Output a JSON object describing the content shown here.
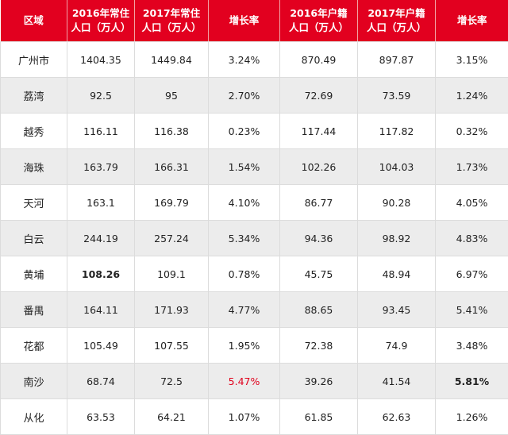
{
  "header": {
    "region": "区域",
    "pop2016_l1": "2016年常住",
    "pop2016_l2": "人口（万人）",
    "pop2017_l1": "2017年常住",
    "pop2017_l2": "人口（万人）",
    "growth": "增长率",
    "reg2016_l1": "2016年户籍",
    "reg2016_l2": "人口（万人）",
    "reg2017_l1": "2017年户籍",
    "reg2017_l2": "人口（万人）",
    "reg_growth": "增长率"
  },
  "rows": [
    {
      "region": "广州市",
      "pop2016": "1404.35",
      "pop2017": "1449.84",
      "growth": "3.24%",
      "reg2016": "870.49",
      "reg2017": "897.87",
      "reg_growth": "3.15%"
    },
    {
      "region": "荔湾",
      "pop2016": "92.5",
      "pop2017": "95",
      "growth": "2.70%",
      "reg2016": "72.69",
      "reg2017": "73.59",
      "reg_growth": "1.24%"
    },
    {
      "region": "越秀",
      "pop2016": "116.11",
      "pop2017": "116.38",
      "growth": "0.23%",
      "reg2016": "117.44",
      "reg2017": "117.82",
      "reg_growth": "0.32%"
    },
    {
      "region": "海珠",
      "pop2016": "163.79",
      "pop2017": "166.31",
      "growth": "1.54%",
      "reg2016": "102.26",
      "reg2017": "104.03",
      "reg_growth": "1.73%"
    },
    {
      "region": "天河",
      "pop2016": "163.1",
      "pop2017": "169.79",
      "growth": "4.10%",
      "reg2016": "86.77",
      "reg2017": "90.28",
      "reg_growth": "4.05%"
    },
    {
      "region": "白云",
      "pop2016": "244.19",
      "pop2017": "257.24",
      "growth": "5.34%",
      "reg2016": "94.36",
      "reg2017": "98.92",
      "reg_growth": "4.83%"
    },
    {
      "region": "黄埔",
      "pop2016": "108.26",
      "pop2017": "109.1",
      "growth": "0.78%",
      "reg2016": "45.75",
      "reg2017": "48.94",
      "reg_growth": "6.97%"
    },
    {
      "region": "番禺",
      "pop2016": "164.11",
      "pop2017": "171.93",
      "growth": "4.77%",
      "reg2016": "88.65",
      "reg2017": "93.45",
      "reg_growth": "5.41%"
    },
    {
      "region": "花都",
      "pop2016": "105.49",
      "pop2017": "107.55",
      "growth": "1.95%",
      "reg2016": "72.38",
      "reg2017": "74.9",
      "reg_growth": "3.48%"
    },
    {
      "region": "南沙",
      "pop2016": "68.74",
      "pop2017": "72.5",
      "growth": "5.47%",
      "reg2016": "39.26",
      "reg2017": "41.54",
      "reg_growth": "5.81%"
    },
    {
      "region": "从化",
      "pop2016": "63.53",
      "pop2017": "64.21",
      "growth": "1.07%",
      "reg2016": "61.85",
      "reg2017": "62.63",
      "reg_growth": "1.26%"
    }
  ],
  "colors": {
    "header_bg": "#e2001f",
    "header_text": "#ffffff",
    "stripe": "#ececec",
    "highlight_red": "#e0001c"
  }
}
